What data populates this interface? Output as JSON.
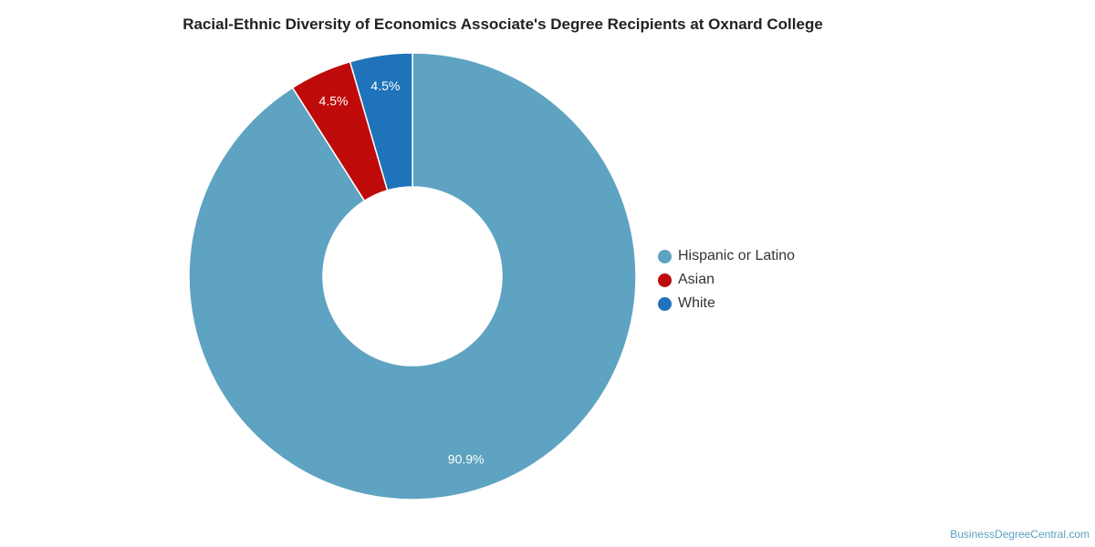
{
  "chart_data": {
    "type": "pie",
    "variant": "donut",
    "title": "Racial-Ethnic Diversity of Economics Associate's Degree Recipients at Oxnard College",
    "slices": [
      {
        "name": "Hispanic or Latino",
        "value": 90.9,
        "label": "90.9%",
        "color": "#5ea3c1"
      },
      {
        "name": "Asian",
        "value": 4.5,
        "label": "4.5%",
        "color": "#bf0a0a"
      },
      {
        "name": "White",
        "value": 4.5,
        "label": "4.5%",
        "color": "#1f73ba"
      }
    ],
    "legend_position": "right"
  },
  "watermark": "BusinessDegreeCentral.com"
}
